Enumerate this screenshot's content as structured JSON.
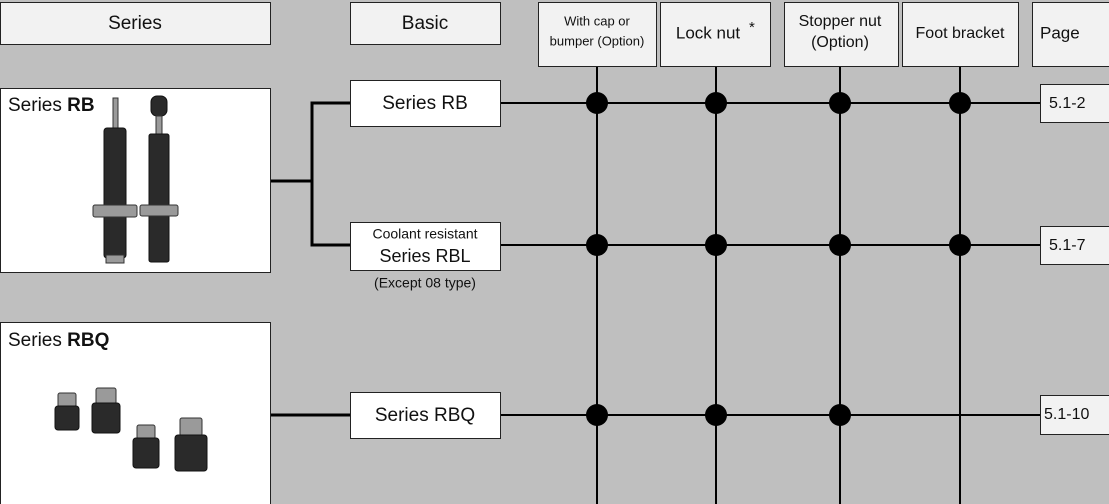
{
  "headers": {
    "series": "Series",
    "basic": "Basic",
    "cap": [
      "With cap or",
      "bumper (Option)"
    ],
    "lock_nut": {
      "label": "Lock nut",
      "mark": "*"
    },
    "stopper": [
      "Stopper nut",
      "(Option)"
    ],
    "foot": "Foot bracket",
    "page": "Page"
  },
  "series": [
    {
      "prefix": "Series",
      "name": "RB"
    },
    {
      "prefix": "Series",
      "name": "RBQ"
    }
  ],
  "rows": [
    {
      "basic": [
        "Series RB"
      ],
      "page": "5.1-2"
    },
    {
      "basic": [
        "Coolant resistant",
        "Series RBL"
      ],
      "note": "(Except 08 type)",
      "page": "5.1-7"
    },
    {
      "basic": [
        "Series RBQ"
      ],
      "page": "5.1-10"
    }
  ]
}
